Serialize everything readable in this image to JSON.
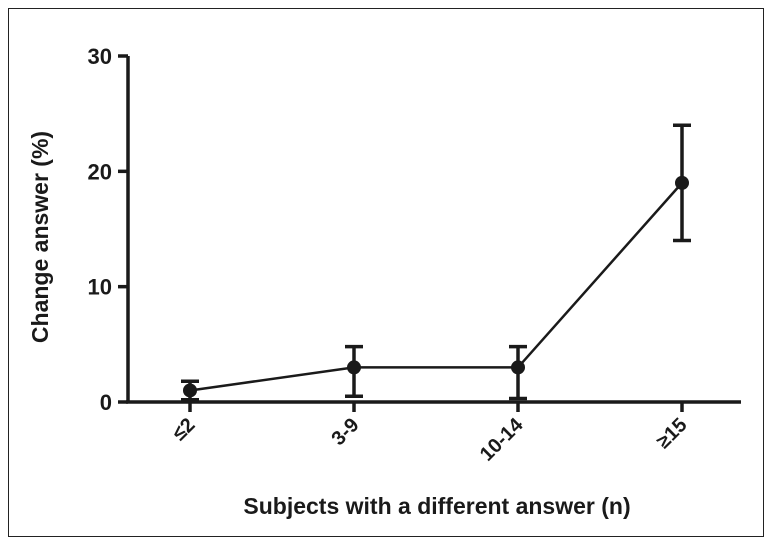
{
  "chart_data": {
    "type": "line",
    "categories": [
      "≤2",
      "3-9",
      "10-14",
      "≥15"
    ],
    "series": [
      {
        "values": [
          1,
          3,
          3,
          19
        ],
        "err_low": [
          0.2,
          0.5,
          0.3,
          14
        ],
        "err_high": [
          1.8,
          4.8,
          4.8,
          24
        ]
      }
    ],
    "title": "",
    "xlabel": "Subjects with a different answer (n)",
    "ylabel": "Change answer (%)",
    "ylim": [
      0,
      30
    ],
    "yticks": [
      0,
      10,
      20,
      30
    ],
    "ytick_labels": [
      "0",
      "10",
      "20",
      "30"
    ],
    "grid": false,
    "color": "#1a1a1a"
  }
}
